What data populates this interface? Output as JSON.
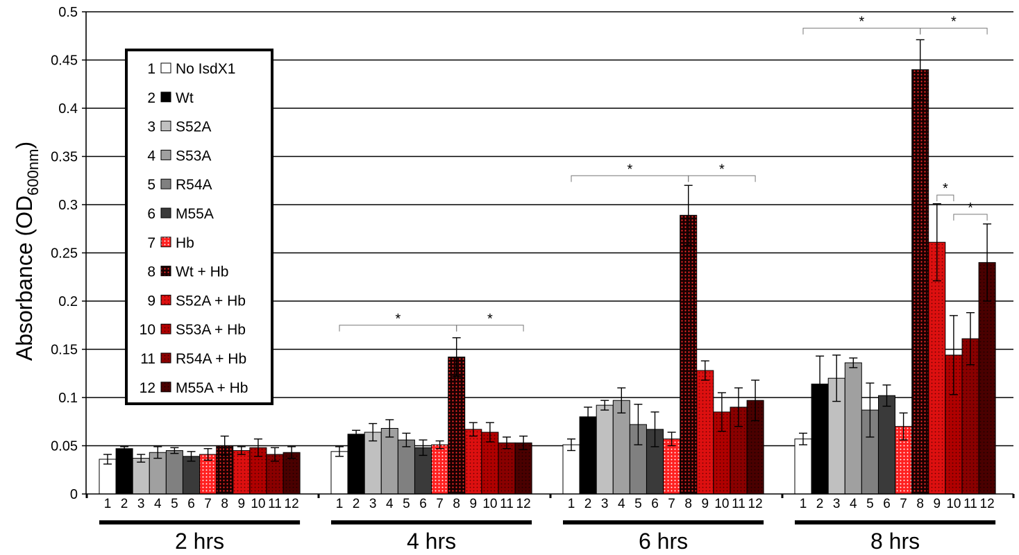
{
  "chart_data": {
    "type": "bar",
    "ylabel": "Absorbance (OD",
    "ylabel_sub": "600nm",
    "ylabel_close": ")",
    "ylim": [
      0,
      0.5
    ],
    "yticks": [
      "0",
      "0.05",
      "0.1",
      "0.15",
      "0.2",
      "0.25",
      "0.3",
      "0.35",
      "0.4",
      "0.45",
      "0.5"
    ],
    "grid": true,
    "legend_position": "top-left",
    "groups": [
      "2 hrs",
      "4 hrs",
      "6 hrs",
      "8 hrs"
    ],
    "categories": [
      "1",
      "2",
      "3",
      "4",
      "5",
      "6",
      "7",
      "8",
      "9",
      "10",
      "11",
      "12"
    ],
    "series": [
      {
        "name": "No IsdX1",
        "fill": "#ffffff",
        "pattern": "none"
      },
      {
        "name": "Wt",
        "fill": "#000000",
        "pattern": "none"
      },
      {
        "name": "S52A",
        "fill": "#c0c0c0",
        "pattern": "none"
      },
      {
        "name": "S53A",
        "fill": "#a0a0a0",
        "pattern": "none"
      },
      {
        "name": "R54A",
        "fill": "#808080",
        "pattern": "none"
      },
      {
        "name": "M55A",
        "fill": "#3a3a3a",
        "pattern": "none"
      },
      {
        "name": "Hb",
        "fill": "#ff2020",
        "pattern": "dots-white"
      },
      {
        "name": "Wt + Hb",
        "fill": "#1a0000",
        "pattern": "dots-red"
      },
      {
        "name": "S52A + Hb",
        "fill": "#dd1010",
        "pattern": "dots-dark"
      },
      {
        "name": "S53A + Hb",
        "fill": "#b00000",
        "pattern": "dots-dark"
      },
      {
        "name": "R54A + Hb",
        "fill": "#8a0000",
        "pattern": "dots-dark"
      },
      {
        "name": "M55A + Hb",
        "fill": "#4a0000",
        "pattern": "dots-dark"
      }
    ],
    "values": [
      [
        0.036,
        0.047,
        0.037,
        0.043,
        0.045,
        0.039,
        0.041,
        0.05,
        0.045,
        0.048,
        0.041,
        0.043
      ],
      [
        0.044,
        0.062,
        0.064,
        0.068,
        0.056,
        0.048,
        0.051,
        0.142,
        0.067,
        0.064,
        0.053,
        0.053
      ],
      [
        0.051,
        0.08,
        0.092,
        0.097,
        0.072,
        0.067,
        0.057,
        0.289,
        0.128,
        0.085,
        0.09,
        0.097
      ],
      [
        0.057,
        0.114,
        0.12,
        0.136,
        0.087,
        0.102,
        0.07,
        0.44,
        0.261,
        0.144,
        0.161,
        0.24
      ]
    ],
    "errors": [
      [
        0.005,
        0.002,
        0.004,
        0.006,
        0.003,
        0.005,
        0.006,
        0.01,
        0.004,
        0.009,
        0.007,
        0.006
      ],
      [
        0.005,
        0.004,
        0.009,
        0.009,
        0.007,
        0.008,
        0.004,
        0.02,
        0.007,
        0.01,
        0.006,
        0.007
      ],
      [
        0.006,
        0.01,
        0.005,
        0.013,
        0.021,
        0.018,
        0.007,
        0.031,
        0.01,
        0.02,
        0.02,
        0.021
      ],
      [
        0.006,
        0.029,
        0.024,
        0.005,
        0.028,
        0.011,
        0.014,
        0.031,
        0.04,
        0.041,
        0.027,
        0.04
      ]
    ],
    "significance": [
      {
        "group": 1,
        "from": 1,
        "to": 8,
        "y": 0.175,
        "label": "*"
      },
      {
        "group": 1,
        "from": 8,
        "to": 12,
        "y": 0.175,
        "label": "*"
      },
      {
        "group": 2,
        "from": 1,
        "to": 8,
        "y": 0.33,
        "label": "*"
      },
      {
        "group": 2,
        "from": 8,
        "to": 12,
        "y": 0.33,
        "label": "*"
      },
      {
        "group": 3,
        "from": 1,
        "to": 8,
        "y": 0.483,
        "label": "*"
      },
      {
        "group": 3,
        "from": 8,
        "to": 12,
        "y": 0.483,
        "label": "*"
      },
      {
        "group": 3,
        "from": 9,
        "to": 10,
        "y": 0.31,
        "label": "*"
      },
      {
        "group": 3,
        "from": 10,
        "to": 12,
        "y": 0.29,
        "label": "*"
      }
    ]
  }
}
